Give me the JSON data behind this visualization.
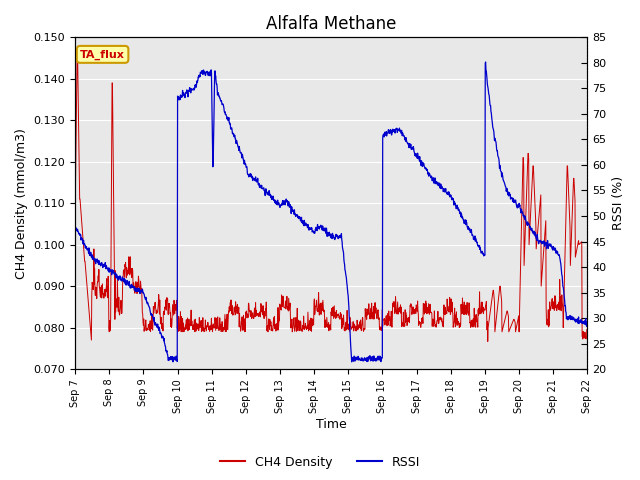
{
  "title": "Alfalfa Methane",
  "xlabel": "Time",
  "ylabel_left": "CH4 Density (mmol/m3)",
  "ylabel_right": "RSSI (%)",
  "legend_label": "TA_flux",
  "ylim_left": [
    0.07,
    0.15
  ],
  "ylim_right": [
    20,
    85
  ],
  "yticks_left": [
    0.07,
    0.08,
    0.09,
    0.1,
    0.11,
    0.12,
    0.13,
    0.14,
    0.15
  ],
  "yticks_right": [
    20,
    25,
    30,
    35,
    40,
    45,
    50,
    55,
    60,
    65,
    70,
    75,
    80,
    85
  ],
  "xtick_labels": [
    "Sep 7",
    "Sep 8",
    "Sep 9",
    "Sep 10",
    "Sep 11",
    "Sep 12",
    "Sep 13",
    "Sep 14",
    "Sep 15",
    "Sep 16",
    "Sep 17",
    "Sep 18",
    "Sep 19",
    "Sep 20",
    "Sep 21",
    "Sep 22"
  ],
  "bg_color": "#e8e8e8",
  "line_color_red": "#cc0000",
  "line_color_blue": "#0000cc",
  "annotation_box_color": "#ffffaa",
  "annotation_box_edge": "#cc9900",
  "annotation_text_color": "#cc0000"
}
